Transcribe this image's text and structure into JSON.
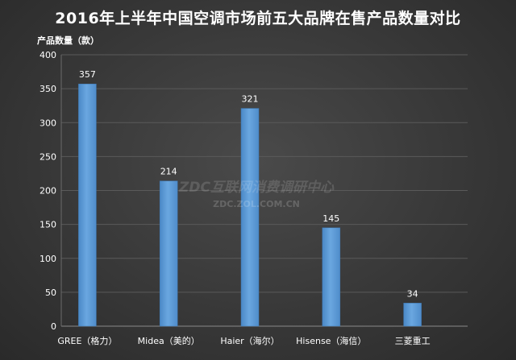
{
  "chart_data": {
    "type": "bar",
    "title": "2016年上半年中国空调市场前五大品牌在售产品数量对比",
    "ylabel": "产品数量（款）",
    "xlabel": "",
    "categories": [
      "GREE（格力）",
      "Midea（美的）",
      "Haier（海尔）",
      "Hisense（海信）",
      "三菱重工"
    ],
    "values": [
      357,
      214,
      321,
      145,
      34
    ],
    "data_labels": [
      "357",
      "214",
      "321",
      "145",
      "34"
    ],
    "ylim": [
      0,
      400
    ],
    "yticks": [
      "0",
      "50",
      "100",
      "150",
      "200",
      "250",
      "300",
      "350",
      "400"
    ],
    "grid": "horizontal",
    "legend": "none",
    "colors": {
      "bar": "#5b9bd5",
      "bar_light": "#7fb2e5",
      "grid": "#5a5a5a",
      "text": "#ffffff"
    }
  },
  "watermark": {
    "line1": "ZDC互联网消费调研中心",
    "line2": "ZDC.ZOL.COM.CN"
  }
}
